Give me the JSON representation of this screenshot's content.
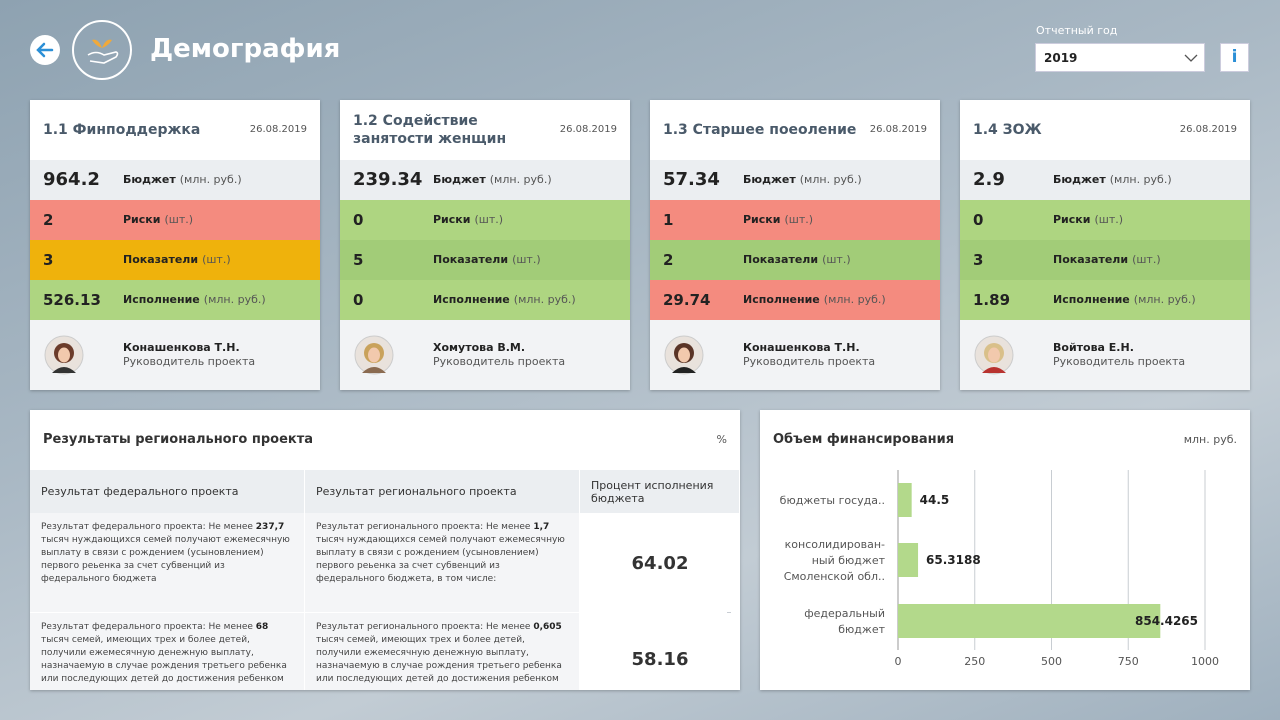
{
  "header": {
    "title": "Демография",
    "year_label": "Отчетный год",
    "year": "2019",
    "info": "i"
  },
  "cards": [
    {
      "title": "1.1 Финподдержка",
      "date": "26.08.2019",
      "rows": [
        {
          "value": 964.2,
          "label": "Бюджет",
          "unit": "(млн. руб.)",
          "color": "#ebeef1"
        },
        {
          "value": 2,
          "label": "Риски",
          "unit": "(шт.)",
          "color": "#f48b7f"
        },
        {
          "value": 3,
          "label": "Показатели",
          "unit": "(шт.)",
          "color": "#efb20c"
        },
        {
          "value": 526.13,
          "label": "Исполнение",
          "unit": "(млн. руб.)",
          "color": "#aed581"
        }
      ],
      "person": {
        "name": "Конашенкова Т.Н.",
        "role": "Руководитель проекта"
      }
    },
    {
      "title": "1.2 Содействие занятости женщин",
      "date": "26.08.2019",
      "rows": [
        {
          "value": 239.34,
          "label": "Бюджет",
          "unit": "(млн. руб.)",
          "color": "#ebeef1"
        },
        {
          "value": 0,
          "label": "Риски",
          "unit": "(шт.)",
          "color": "#aed581"
        },
        {
          "value": 5,
          "label": "Показатели",
          "unit": "(шт.)",
          "color": "#a2cc78"
        },
        {
          "value": 0,
          "label": "Исполнение",
          "unit": "(млн. руб.)",
          "color": "#aed581"
        }
      ],
      "person": {
        "name": "Хомутова В.М.",
        "role": "Руководитель проекта"
      }
    },
    {
      "title": "1.3 Старшее поеоление",
      "date": "26.08.2019",
      "rows": [
        {
          "value": 57.34,
          "label": "Бюджет",
          "unit": "(млн. руб.)",
          "color": "#ebeef1"
        },
        {
          "value": 1,
          "label": "Риски",
          "unit": "(шт.)",
          "color": "#f48b7f"
        },
        {
          "value": 2,
          "label": "Показатели",
          "unit": "(шт.)",
          "color": "#a2cc78"
        },
        {
          "value": 29.74,
          "label": "Исполнение",
          "unit": "(млн. руб.)",
          "color": "#f48b7f"
        }
      ],
      "person": {
        "name": "Конашенкова Т.Н.",
        "role": "Руководитель проекта"
      }
    },
    {
      "title": "1.4 ЗОЖ",
      "date": "26.08.2019",
      "rows": [
        {
          "value": 2.9,
          "label": "Бюджет",
          "unit": "(млн. руб.)",
          "color": "#ebeef1"
        },
        {
          "value": 0,
          "label": "Риски",
          "unit": "(шт.)",
          "color": "#aed581"
        },
        {
          "value": 3,
          "label": "Показатели",
          "unit": "(шт.)",
          "color": "#a2cc78"
        },
        {
          "value": 1.89,
          "label": "Исполнение",
          "unit": "(млн. руб.)",
          "color": "#aed581"
        }
      ],
      "person": {
        "name": "Войтова Е.Н.",
        "role": "Руководитель проекта"
      }
    }
  ],
  "results": {
    "title": "Результаты регионального проекта",
    "unit": "%",
    "columns": [
      "Результат федерального проекта",
      "Результат регионального проекта",
      "Процент исполнения бюджета"
    ],
    "rows": [
      {
        "federal": [
          "Результат федерального проекта: Не менее ",
          "237,7",
          " тысяч нуждающихся семей получают ежемесячную выплату в связи с рождением (усыновлением) первого реьенка за счет субвенций из федерального бюджета"
        ],
        "regional": [
          "Результат регионального проекта: Не менее ",
          "1,7",
          " тысяч нуждающихся семей получают ежемесячную выплату в связи с рождением (усыновлением) первого реьенка за счет субвенций из федерального бюджета, в том числе:"
        ],
        "value": 64.02
      },
      {
        "federal": [
          "Результат федерального проекта: Не менее ",
          "68",
          " тысяч семей, имеющих трех и более детей, получили ежемесячную денежную выплату, назначаемую в случае рождения третьего ребенка или последующих детей до достижения ребенком"
        ],
        "regional": [
          "Результат регионального проекта: Не менее ",
          "0,605",
          " тысяч семей, имеющих трех и более детей, получили ежемесячную денежную выплату, назначаемую в случае рождения третьего ребенка или последующих детей до достижения ребенком"
        ],
        "value": 58.16
      }
    ]
  },
  "chart_data": {
    "type": "hbar",
    "title": "Объем финансирования",
    "unit": "млн. руб.",
    "categories": [
      "бюджеты госуда..",
      "консолидирован-\nный бюджет\nСмоленской обл..",
      "федеральный\nбюджет"
    ],
    "values": [
      44.5,
      65.3188,
      854.4265
    ],
    "color": "#b3d98b",
    "xlim": [
      0,
      1000
    ],
    "xticks": [
      0,
      250,
      500,
      750,
      1000
    ],
    "grid": true
  }
}
